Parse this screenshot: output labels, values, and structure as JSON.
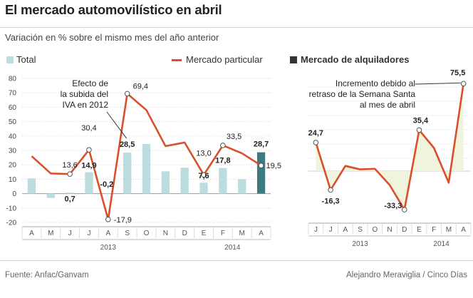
{
  "title": "El mercado automovilístico en abril",
  "subtitle": "Variación en % sobre el mismo mes del año anterior",
  "legend": {
    "total": "Total",
    "particular": "Mercado particular",
    "rental": "Mercado de alquiladores"
  },
  "colors": {
    "bar": "#bcdde0",
    "bar_highlight": "#3d7b82",
    "line": "#d94f2b",
    "rental_fill": "#f1f4dc",
    "grid": "#d9d9d9"
  },
  "chart_data": [
    {
      "type": "bar+line",
      "categories": [
        "A",
        "M",
        "J",
        "J",
        "A",
        "S",
        "O",
        "N",
        "D",
        "E",
        "F",
        "M",
        "A"
      ],
      "years": [
        {
          "label": "2013",
          "from": 0,
          "to": 8
        },
        {
          "label": "2014",
          "from": 9,
          "to": 12
        }
      ],
      "ylim": [
        -20,
        80
      ],
      "yticks": [
        -20,
        -10,
        0,
        10,
        20,
        30,
        40,
        50,
        60,
        70,
        80
      ],
      "series": [
        {
          "name": "Total",
          "kind": "bar",
          "values": [
            10.6,
            -3.0,
            0.7,
            14.9,
            -0.2,
            28.5,
            34.5,
            15.5,
            18.0,
            7.6,
            17.8,
            10.0,
            28.7
          ]
        },
        {
          "name": "Mercado particular",
          "kind": "line",
          "values": [
            26.0,
            14.0,
            13.6,
            30.4,
            -17.9,
            69.4,
            58.0,
            33.0,
            35.5,
            13.0,
            33.5,
            28.0,
            19.5
          ]
        }
      ],
      "bar_labels": [
        {
          "i": 2,
          "text": "0,7"
        },
        {
          "i": 3,
          "text": "14,9"
        },
        {
          "i": 4,
          "text": "-0,2"
        },
        {
          "i": 5,
          "text": "28,5"
        },
        {
          "i": 9,
          "text": "7,6"
        },
        {
          "i": 10,
          "text": "17,8"
        },
        {
          "i": 12,
          "text": "28,7"
        }
      ],
      "line_labels": [
        {
          "i": 2,
          "text": "13,6"
        },
        {
          "i": 3,
          "text": "30,4"
        },
        {
          "i": 4,
          "text": "-17,9"
        },
        {
          "i": 5,
          "text": "69,4"
        },
        {
          "i": 9,
          "text": "13,0"
        },
        {
          "i": 10,
          "text": "33,5"
        },
        {
          "i": 12,
          "text": "19,5"
        }
      ],
      "annotation": [
        "Efecto de",
        "la subida del",
        "IVA en 2012"
      ]
    },
    {
      "type": "line",
      "title": "Mercado de alquiladores",
      "categories": [
        "J",
        "J",
        "A",
        "S",
        "O",
        "N",
        "D",
        "E",
        "F",
        "M",
        "A"
      ],
      "years": [
        {
          "label": "2013",
          "from": 0,
          "to": 6
        },
        {
          "label": "2014",
          "from": 7,
          "to": 10
        }
      ],
      "ylim": [
        -40,
        80
      ],
      "series": [
        {
          "name": "Mercado de alquiladores",
          "values": [
            24.7,
            -16.3,
            4.5,
            1.5,
            2.0,
            -12.0,
            -33.3,
            35.4,
            20.0,
            -10.0,
            75.5
          ]
        }
      ],
      "labels": [
        {
          "i": 0,
          "text": "24,7"
        },
        {
          "i": 1,
          "text": "-16,3"
        },
        {
          "i": 6,
          "text": "-33,3"
        },
        {
          "i": 7,
          "text": "35,4"
        },
        {
          "i": 10,
          "text": "75,5"
        }
      ],
      "annotation": [
        "Incremento debido al",
        "retraso  de la Semana Santa",
        "al mes de abril"
      ]
    }
  ],
  "footer": {
    "source": "Fuente: Anfac/Ganvam",
    "credit": "Alejandro Meraviglia / Cinco Días"
  }
}
